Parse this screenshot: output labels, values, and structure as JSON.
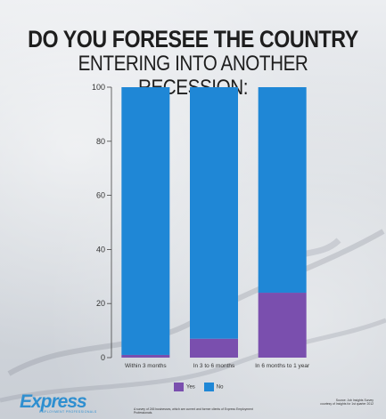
{
  "title": {
    "line1": "DO YOU FORESEE THE COUNTRY",
    "line2": "ENTERING INTO ANOTHER RECESSION:"
  },
  "colors": {
    "yes": "#7a4fae",
    "no": "#1f87d6",
    "axis": "#444444"
  },
  "chart_data": {
    "type": "bar",
    "stacked": true,
    "categories": [
      "Within 3 months",
      "In 3 to 6 months",
      "In 6 months to 1 year"
    ],
    "series": [
      {
        "name": "Yes",
        "values": [
          1,
          7,
          24
        ]
      },
      {
        "name": "No",
        "values": [
          99,
          93,
          76
        ]
      }
    ],
    "ylim": [
      0,
      100
    ],
    "yticks": [
      0,
      20,
      40,
      60,
      80,
      100
    ],
    "xlabel": "",
    "ylabel": "",
    "legend_position": "bottom-center",
    "grid": false
  },
  "legend": {
    "yes_label": "Yes",
    "no_label": "No"
  },
  "branding": {
    "logo_text": "Express",
    "logo_sub": "EMPLOYMENT PROFESSIONALS"
  },
  "footnote": "A survey of 245 businesses, which are current and former clients of Express Employment Professionals.",
  "source": {
    "line1": "Source: Job Insights Survey",
    "line2": "courtesy of Insights for 1st quarter 2012"
  }
}
